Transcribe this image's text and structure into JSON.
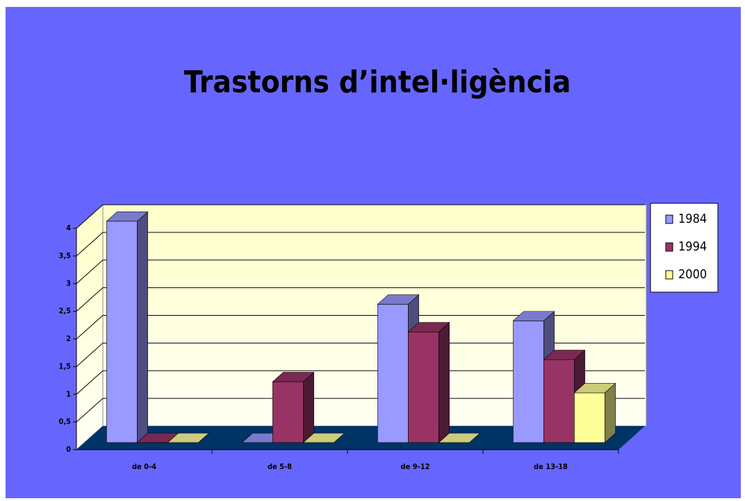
{
  "chart_data": {
    "type": "bar3d",
    "title": "Trastorns d’intel·ligència",
    "categories": [
      "de 0-4",
      "de 5-8",
      "de 9-12",
      "de 13-18"
    ],
    "series": [
      {
        "name": "1984",
        "color": "#9999ff",
        "values": [
          4,
          0,
          2.5,
          2.2
        ]
      },
      {
        "name": "1994",
        "color": "#993366",
        "values": [
          0,
          1.1,
          2,
          1.5
        ]
      },
      {
        "name": "2000",
        "color": "#ffff99",
        "values": [
          0,
          0,
          0,
          0.9
        ]
      }
    ],
    "ylim": [
      0,
      4
    ],
    "yticks": [
      0,
      {
        "value": 0.5,
        "label": "0,5"
      },
      1,
      {
        "value": 1.5,
        "label": "1,5"
      },
      2,
      {
        "value": 2.5,
        "label": "2,5"
      },
      3,
      {
        "value": 3.5,
        "label": "3,5"
      },
      4
    ],
    "grid": true,
    "legend": "right"
  }
}
